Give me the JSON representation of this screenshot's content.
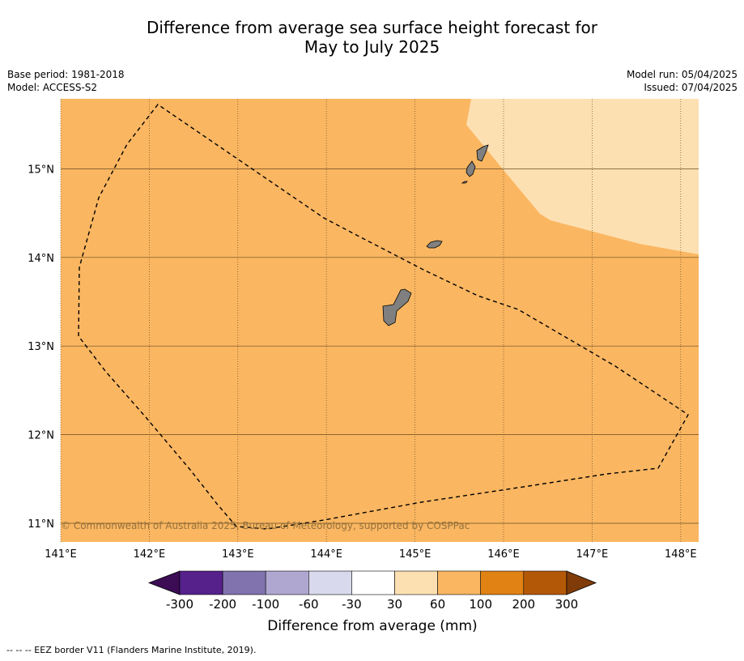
{
  "title": {
    "line1": "Difference from average sea surface height forecast for",
    "line2": "May to July 2025"
  },
  "meta": {
    "base_period": "Base period: 1981-2018",
    "model": "Model: ACCESS-S2",
    "model_run": "Model run: 05/04/2025",
    "issued": "Issued: 07/04/2025"
  },
  "map": {
    "lon_range": [
      141.0,
      148.2
    ],
    "lat_range": [
      10.8,
      15.8
    ],
    "lon_ticks": [
      "141°E",
      "142°E",
      "143°E",
      "144°E",
      "145°E",
      "146°E",
      "147°E",
      "148°E"
    ],
    "lat_ticks": [
      "11°N",
      "12°N",
      "13°N",
      "14°N",
      "15°N"
    ],
    "background_category": "60 to 100 mm",
    "background_color": "#fab661",
    "region_color": "#fde0b2",
    "land_color": "#808080",
    "copyright": "© Commonwealth of Australia 2025, Bureau of Meteorology, supported by COSPPac"
  },
  "colorbar": {
    "colors": [
      "#3c0d55",
      "#56218b",
      "#8073ae",
      "#b0a7d1",
      "#d8d9ec",
      "#ffffff",
      "#fde0b2",
      "#fab661",
      "#e08214",
      "#b35806",
      "#7f3b08"
    ],
    "labels": [
      "-300",
      "-200",
      "-100",
      "-60",
      "-30",
      "30",
      "60",
      "100",
      "200",
      "300"
    ],
    "title": "Difference from average (mm)"
  },
  "footer": "--  --  -- EEZ border V11 (Flanders Marine Institute, 2019)."
}
